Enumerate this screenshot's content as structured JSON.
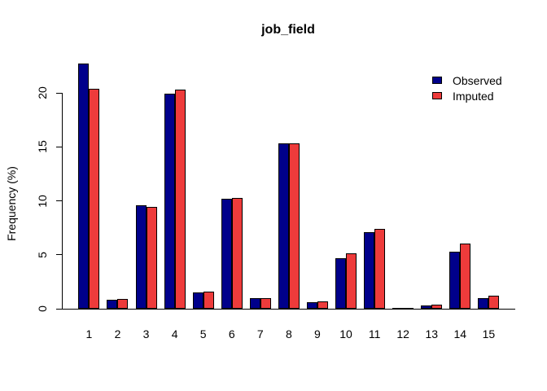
{
  "chart_data": {
    "type": "bar",
    "title": "job_field",
    "xlabel": "",
    "ylabel": "Frequency (%)",
    "categories": [
      "1",
      "2",
      "3",
      "4",
      "5",
      "6",
      "7",
      "8",
      "9",
      "10",
      "11",
      "12",
      "13",
      "14",
      "15"
    ],
    "series": [
      {
        "name": "Observed",
        "color": "#00008B",
        "values": [
          22.7,
          0.8,
          9.6,
          19.9,
          1.5,
          10.2,
          1.0,
          15.3,
          0.6,
          4.7,
          7.1,
          0.1,
          0.3,
          5.3,
          1.0
        ]
      },
      {
        "name": "Imputed",
        "color": "#EE3B3B",
        "values": [
          20.4,
          0.9,
          9.4,
          20.3,
          1.6,
          10.3,
          1.0,
          15.3,
          0.7,
          5.1,
          7.4,
          0.1,
          0.4,
          6.0,
          1.2
        ]
      }
    ],
    "yticks": [
      0,
      5,
      10,
      15,
      20
    ],
    "ylim": [
      0,
      22.7
    ],
    "grid": false,
    "legend_position": "topright",
    "bar_border_color": "#000000",
    "axis_color": "#000000",
    "background_color": "#FFFFFF"
  }
}
